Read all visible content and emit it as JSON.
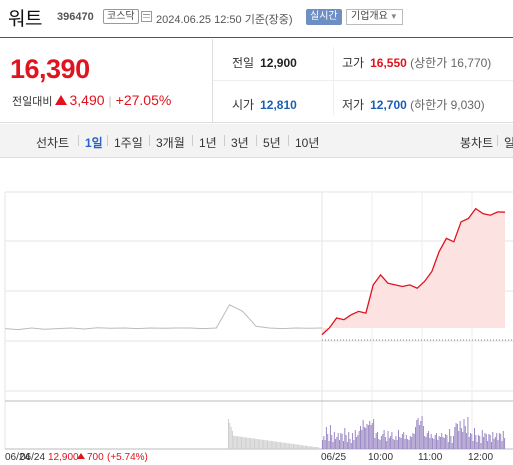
{
  "header": {
    "name": "워트",
    "code": "396470",
    "market": "코스닥",
    "datetime": "2024.06.25 12:50 기준(장중)",
    "realtime_label": "실시간",
    "company_info_label": "기업개요"
  },
  "summary": {
    "price": "16,390",
    "change_label": "전일대비",
    "change_amount": "3,490",
    "change_pct": "+27.05%",
    "prev_close": {
      "label": "전일",
      "value": "12,900"
    },
    "high": {
      "label": "고가",
      "value": "16,550",
      "extra": "(상한가 16,770)"
    },
    "open": {
      "label": "시가",
      "value": "12,810"
    },
    "low": {
      "label": "저가",
      "value": "12,700",
      "extra": "(하한가 9,030)"
    }
  },
  "tabs": {
    "line_chart": "선차트",
    "periods": [
      "1일",
      "1주일",
      "3개월",
      "1년",
      "3년",
      "5년",
      "10년"
    ],
    "active": "1일",
    "candle_chart": "봉차트",
    "more": "일"
  },
  "chart_data": {
    "type": "line",
    "series": [
      {
        "values": [
          12880,
          12850,
          12900,
          12860,
          12880,
          12900,
          12870,
          12910,
          12890,
          12900,
          12880,
          12900,
          12890,
          12900,
          12900,
          12880,
          12900,
          13600,
          13400,
          12950,
          12900,
          12880,
          12900,
          12890,
          12900
        ]
      },
      {
        "values": [
          12700,
          12900,
          13200,
          13150,
          13300,
          13400,
          13350,
          14200,
          14500,
          14250,
          14200,
          14150,
          14200,
          14100,
          14300,
          14600,
          15200,
          15600,
          15500,
          16100,
          16200,
          16500,
          16350,
          16300,
          16400,
          16390
        ]
      }
    ],
    "x_tick_labels": [
      "06/24",
      "06/25",
      "10:00",
      "11:00",
      "12:00"
    ],
    "footer_prev": {
      "date": "06/24",
      "price": "12,900",
      "change": "700",
      "pct": "(+5.74%)"
    }
  },
  "colors": {
    "up": "#e0131e",
    "prev_line": "#bbbbbb",
    "fill": "#fde2e2",
    "volume_today": "#9b89c4",
    "volume_prev": "#cfcfcf"
  }
}
